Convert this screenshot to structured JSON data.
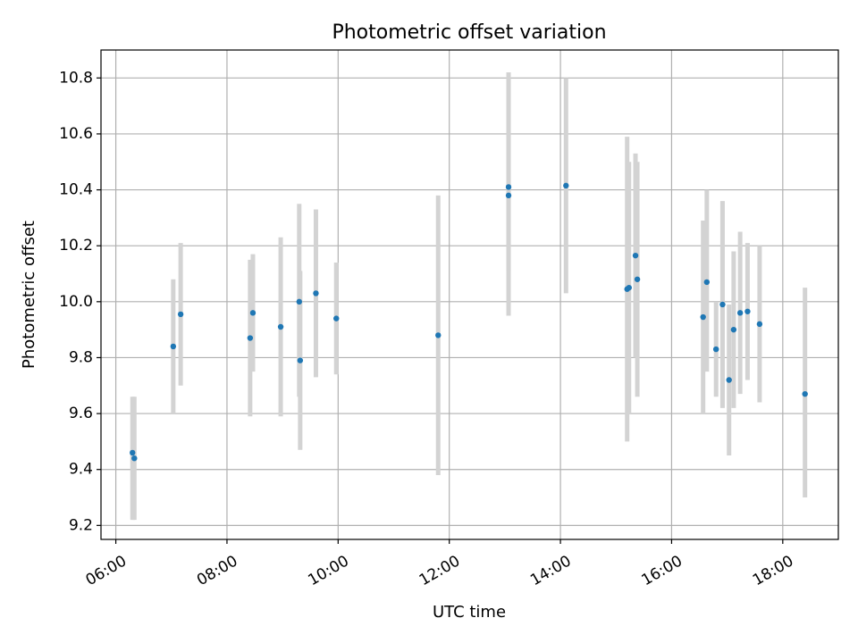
{
  "chart_data": {
    "type": "scatter",
    "title": "Photometric offset variation",
    "xlabel": "UTC time",
    "ylabel": "Photometric offset",
    "x_ticks": [
      "06:00",
      "08:00",
      "10:00",
      "12:00",
      "14:00",
      "16:00",
      "18:00"
    ],
    "y_ticks": [
      "9.2",
      "9.4",
      "9.6",
      "9.8",
      "10.0",
      "10.2",
      "10.4",
      "10.6",
      "10.8"
    ],
    "xlim": [
      "05:44",
      "19:00"
    ],
    "ylim": [
      9.15,
      10.9
    ],
    "grid": true,
    "legend": "none",
    "colors": {
      "point": "#1f77b4",
      "errorbar": "#d3d3d3",
      "grid": "#b0b0b0"
    },
    "points": [
      {
        "time": "06:18",
        "value": 9.46,
        "err_low": 9.22,
        "err_high": 9.66
      },
      {
        "time": "06:20",
        "value": 9.44,
        "err_low": 9.22,
        "err_high": 9.66
      },
      {
        "time": "07:02",
        "value": 9.84,
        "err_low": 9.6,
        "err_high": 10.08
      },
      {
        "time": "07:10",
        "value": 9.955,
        "err_low": 9.7,
        "err_high": 10.21
      },
      {
        "time": "08:25",
        "value": 9.87,
        "err_low": 9.59,
        "err_high": 10.15
      },
      {
        "time": "08:28",
        "value": 9.96,
        "err_low": 9.75,
        "err_high": 10.17
      },
      {
        "time": "08:58",
        "value": 9.91,
        "err_low": 9.59,
        "err_high": 10.23
      },
      {
        "time": "09:18",
        "value": 10.0,
        "err_low": 9.66,
        "err_high": 10.35
      },
      {
        "time": "09:19",
        "value": 9.79,
        "err_low": 9.47,
        "err_high": 10.11
      },
      {
        "time": "09:36",
        "value": 10.03,
        "err_low": 9.73,
        "err_high": 10.33
      },
      {
        "time": "09:58",
        "value": 9.94,
        "err_low": 9.74,
        "err_high": 10.14
      },
      {
        "time": "11:48",
        "value": 9.88,
        "err_low": 9.38,
        "err_high": 10.38
      },
      {
        "time": "13:04",
        "value": 10.41,
        "err_low": 10.11,
        "err_high": 10.82
      },
      {
        "time": "13:04",
        "value": 10.38,
        "err_low": 9.95,
        "err_high": 10.81
      },
      {
        "time": "14:06",
        "value": 10.415,
        "err_low": 10.03,
        "err_high": 10.8
      },
      {
        "time": "15:12",
        "value": 10.045,
        "err_low": 9.5,
        "err_high": 10.59
      },
      {
        "time": "15:14",
        "value": 10.05,
        "err_low": 9.6,
        "err_high": 10.5
      },
      {
        "time": "15:21",
        "value": 10.165,
        "err_low": 9.8,
        "err_high": 10.53
      },
      {
        "time": "15:23",
        "value": 10.08,
        "err_low": 9.66,
        "err_high": 10.5
      },
      {
        "time": "16:34",
        "value": 9.945,
        "err_low": 9.6,
        "err_high": 10.29
      },
      {
        "time": "16:38",
        "value": 10.07,
        "err_low": 9.75,
        "err_high": 10.4
      },
      {
        "time": "16:48",
        "value": 9.83,
        "err_low": 9.66,
        "err_high": 10.0
      },
      {
        "time": "16:55",
        "value": 9.99,
        "err_low": 9.62,
        "err_high": 10.36
      },
      {
        "time": "17:02",
        "value": 9.72,
        "err_low": 9.45,
        "err_high": 9.99
      },
      {
        "time": "17:07",
        "value": 9.9,
        "err_low": 9.62,
        "err_high": 10.18
      },
      {
        "time": "17:14",
        "value": 9.96,
        "err_low": 9.67,
        "err_high": 10.25
      },
      {
        "time": "17:22",
        "value": 9.965,
        "err_low": 9.72,
        "err_high": 10.21
      },
      {
        "time": "17:35",
        "value": 9.92,
        "err_low": 9.64,
        "err_high": 10.2
      },
      {
        "time": "18:24",
        "value": 9.67,
        "err_low": 9.3,
        "err_high": 10.05
      }
    ]
  }
}
